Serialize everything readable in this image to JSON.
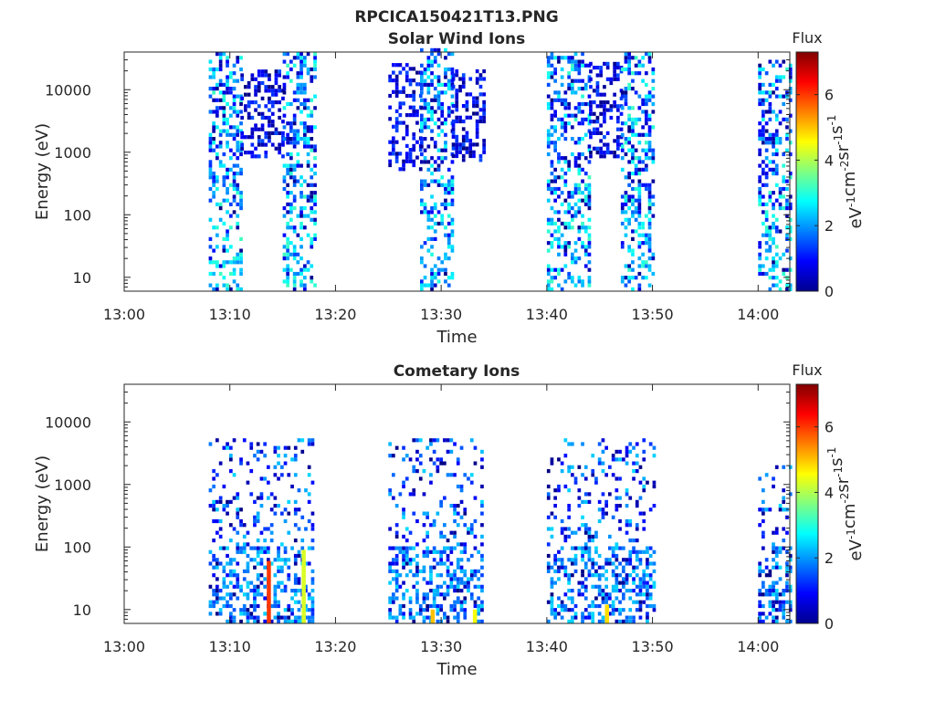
{
  "figure_title": "RPCICA150421T13.PNG",
  "colors": {
    "colormap": [
      "#00008f",
      "#0000ff",
      "#0080ff",
      "#00ffff",
      "#80ff80",
      "#ffff00",
      "#ff8000",
      "#ff0000",
      "#800000"
    ],
    "axes": "#262626",
    "background": "#ffffff"
  },
  "chart_data": [
    {
      "type": "heatmap",
      "title": "Solar Wind Ions",
      "xlabel": "Time",
      "ylabel": "Energy (eV)",
      "x_ticks": [
        "13:00",
        "13:10",
        "13:20",
        "13:30",
        "13:40",
        "13:50",
        "14:00"
      ],
      "xlim_minutes": [
        0,
        63
      ],
      "y_ticks": [
        "10",
        "100",
        "1000",
        "10000"
      ],
      "y_scale": "log",
      "ylim": [
        6,
        40000
      ],
      "colorbar": {
        "title": "Flux",
        "label": "eV^-1 cm^-2 sr^-1 s^-1",
        "ticks": [
          "0",
          "2",
          "4",
          "6"
        ],
        "range": [
          0,
          7.3
        ]
      },
      "activity_intervals": [
        {
          "start": "13:08",
          "end": "13:11",
          "energy_min_ev": 6,
          "energy_max_ev": 35000,
          "flux_max": 3.2
        },
        {
          "start": "13:11",
          "end": "13:15",
          "energy_min_ev": 800,
          "energy_max_ev": 20000,
          "flux_max": 1.5
        },
        {
          "start": "13:15",
          "end": "13:18",
          "energy_min_ev": 6,
          "energy_max_ev": 35000,
          "flux_max": 3.2
        },
        {
          "start": "13:25",
          "end": "13:28",
          "energy_min_ev": 500,
          "energy_max_ev": 25000,
          "flux_max": 1.5
        },
        {
          "start": "13:28",
          "end": "13:31",
          "energy_min_ev": 6,
          "energy_max_ev": 40000,
          "flux_max": 3.0
        },
        {
          "start": "13:31",
          "end": "13:34",
          "energy_min_ev": 700,
          "energy_max_ev": 20000,
          "flux_max": 1.5
        },
        {
          "start": "13:40",
          "end": "13:44",
          "energy_min_ev": 6,
          "energy_max_ev": 35000,
          "flux_max": 3.2
        },
        {
          "start": "13:44",
          "end": "13:47",
          "energy_min_ev": 800,
          "energy_max_ev": 25000,
          "flux_max": 1.5
        },
        {
          "start": "13:47",
          "end": "13:50",
          "energy_min_ev": 6,
          "energy_max_ev": 35000,
          "flux_max": 3.2
        },
        {
          "start": "14:00",
          "end": "14:03",
          "energy_min_ev": 6,
          "energy_max_ev": 30000,
          "flux_max": 3.2
        }
      ]
    },
    {
      "type": "heatmap",
      "title": "Cometary Ions",
      "xlabel": "Time",
      "ylabel": "Energy (eV)",
      "x_ticks": [
        "13:00",
        "13:10",
        "13:20",
        "13:30",
        "13:40",
        "13:50",
        "14:00"
      ],
      "xlim_minutes": [
        0,
        63
      ],
      "y_ticks": [
        "10",
        "100",
        "1000",
        "10000"
      ],
      "y_scale": "log",
      "ylim": [
        6,
        40000
      ],
      "colorbar": {
        "title": "Flux",
        "label": "eV^-1 cm^-2 sr^-1 s^-1",
        "ticks": [
          "0",
          "2",
          "4",
          "6"
        ],
        "range": [
          0,
          7.3
        ]
      },
      "activity_intervals": [
        {
          "start": "13:08",
          "end": "13:18",
          "energy_min_ev": 6,
          "energy_max_ev": 5000,
          "flux_max": 2.5
        },
        {
          "start": "13:25",
          "end": "13:34",
          "energy_min_ev": 6,
          "energy_max_ev": 5000,
          "flux_max": 2.5
        },
        {
          "start": "13:40",
          "end": "13:50",
          "energy_min_ev": 6,
          "energy_max_ev": 5000,
          "flux_max": 2.5
        },
        {
          "start": "14:00",
          "end": "14:03",
          "energy_min_ev": 6,
          "energy_max_ev": 2000,
          "flux_max": 2.5
        }
      ],
      "high_flux_spikes": [
        {
          "time": "13:13.5",
          "energy_min_ev": 6,
          "energy_max_ev": 60,
          "flux": 6.0
        },
        {
          "time": "13:16.8",
          "energy_min_ev": 6,
          "energy_max_ev": 90,
          "flux": 4.3
        },
        {
          "time": "13:29.0",
          "energy_min_ev": 6,
          "energy_max_ev": 10,
          "flux": 5.0
        },
        {
          "time": "13:33.0",
          "energy_min_ev": 6,
          "energy_max_ev": 10,
          "flux": 4.5
        },
        {
          "time": "13:45.5",
          "energy_min_ev": 6,
          "energy_max_ev": 12,
          "flux": 4.8
        }
      ]
    }
  ]
}
